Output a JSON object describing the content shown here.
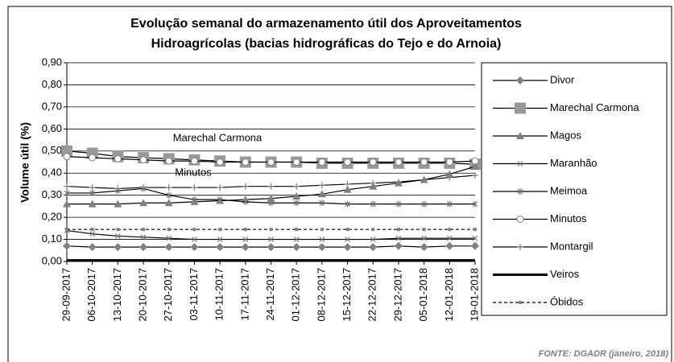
{
  "chart_data": {
    "type": "line",
    "title_lines": [
      "Evolução semanal do armazenamento útil dos Aproveitamentos",
      "Hidroagrícolas (bacias hidrográficas do Tejo e do Arnoia)"
    ],
    "y_label": "Volume útil (%)",
    "source": "FONTE: DGADR (janeiro, 2018)",
    "annotations": [
      {
        "text": "Marechal Carmona"
      },
      {
        "text": "Minutos"
      }
    ],
    "categories": [
      "29-09-2017",
      "06-10-2017",
      "13-10-2017",
      "20-10-2017",
      "27-10-2017",
      "03-11-2017",
      "10-11-2017",
      "17-11-2017",
      "24-11-2017",
      "01-12-2017",
      "08-12-2017",
      "15-12-2017",
      "22-12-2017",
      "29-12-2017",
      "05-01-2018",
      "12-01-2018",
      "19-01-2018"
    ],
    "ylim": [
      0,
      0.9
    ],
    "yticks": [
      {
        "value": 0,
        "label": "0,00"
      },
      {
        "value": 0.1,
        "label": "0,10"
      },
      {
        "value": 0.2,
        "label": "0,20"
      },
      {
        "value": 0.3,
        "label": "0,30"
      },
      {
        "value": 0.4,
        "label": "0,40"
      },
      {
        "value": 0.5,
        "label": "0,50"
      },
      {
        "value": 0.6,
        "label": "0,60"
      },
      {
        "value": 0.7,
        "label": "0,70"
      },
      {
        "value": 0.8,
        "label": "0,80"
      },
      {
        "value": 0.9,
        "label": "0,90"
      }
    ],
    "grid": true,
    "legend": "right",
    "series": [
      {
        "name": "Divor",
        "color": "#000000",
        "marker": "diamond",
        "marker_color": "#808080",
        "values": [
          0.07,
          0.065,
          0.065,
          0.065,
          0.065,
          0.065,
          0.065,
          0.065,
          0.065,
          0.065,
          0.065,
          0.065,
          0.065,
          0.07,
          0.065,
          0.07,
          0.07
        ]
      },
      {
        "name": "Marechal Carmona",
        "color": "#000000",
        "marker": "square",
        "marker_color": "#999999",
        "values": [
          0.5,
          0.49,
          0.475,
          0.47,
          0.465,
          0.46,
          0.455,
          0.45,
          0.45,
          0.45,
          0.445,
          0.445,
          0.445,
          0.445,
          0.445,
          0.445,
          0.44
        ]
      },
      {
        "name": "Magos",
        "color": "#000000",
        "marker": "triangle",
        "marker_color": "#808080",
        "values": [
          0.26,
          0.26,
          0.26,
          0.265,
          0.265,
          0.27,
          0.275,
          0.28,
          0.285,
          0.295,
          0.305,
          0.325,
          0.34,
          0.355,
          0.37,
          0.395,
          0.43
        ]
      },
      {
        "name": "Maranhão",
        "color": "#000000",
        "marker": "x",
        "marker_color": "#808080",
        "values": [
          0.14,
          0.125,
          0.115,
          0.11,
          0.105,
          0.1,
          0.1,
          0.1,
          0.1,
          0.1,
          0.1,
          0.1,
          0.1,
          0.105,
          0.105,
          0.105,
          0.105
        ]
      },
      {
        "name": "Meimoa",
        "color": "#000000",
        "marker": "star",
        "marker_color": "#808080",
        "values": [
          0.31,
          0.31,
          0.32,
          0.33,
          0.3,
          0.28,
          0.28,
          0.27,
          0.265,
          0.265,
          0.265,
          0.26,
          0.26,
          0.26,
          0.26,
          0.26,
          0.26
        ]
      },
      {
        "name": "Minutos",
        "color": "#000000",
        "marker": "circle",
        "marker_color": "#808080",
        "values": [
          0.475,
          0.47,
          0.465,
          0.46,
          0.455,
          0.455,
          0.45,
          0.45,
          0.45,
          0.45,
          0.45,
          0.45,
          0.45,
          0.45,
          0.45,
          0.45,
          0.455
        ]
      },
      {
        "name": "Montargil",
        "color": "#000000",
        "marker": "plus",
        "marker_color": "#808080",
        "values": [
          0.34,
          0.335,
          0.33,
          0.335,
          0.335,
          0.335,
          0.335,
          0.34,
          0.34,
          0.34,
          0.345,
          0.35,
          0.355,
          0.36,
          0.37,
          0.38,
          0.39
        ]
      },
      {
        "name": "Veiros",
        "color": "#000000",
        "marker": "none",
        "width": 3,
        "values": [
          0.005,
          0.005,
          0.005,
          0.005,
          0.005,
          0.005,
          0.005,
          0.005,
          0.005,
          0.005,
          0.005,
          0.005,
          0.005,
          0.005,
          0.005,
          0.005,
          0.005
        ]
      },
      {
        "name": "Óbidos",
        "color": "#000000",
        "marker": "small-square",
        "marker_color": "#808080",
        "dash": true,
        "values": [
          0.145,
          0.145,
          0.145,
          0.145,
          0.145,
          0.145,
          0.145,
          0.145,
          0.145,
          0.145,
          0.145,
          0.145,
          0.145,
          0.145,
          0.145,
          0.145,
          0.145
        ]
      }
    ]
  }
}
